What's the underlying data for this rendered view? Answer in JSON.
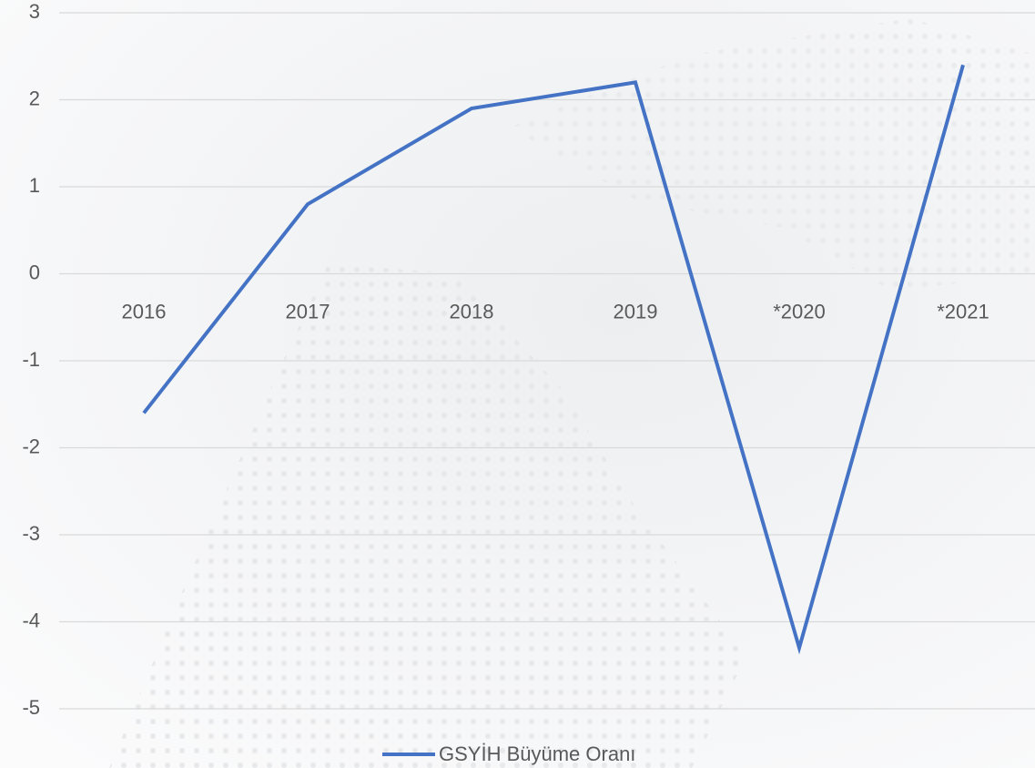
{
  "chart_data": {
    "type": "line",
    "categories": [
      "2016",
      "2017",
      "2018",
      "2019",
      "*2020",
      "*2021"
    ],
    "series": [
      {
        "name": "GSYİH Büyüme Oranı",
        "color": "#4472c4",
        "values": [
          -1.6,
          0.8,
          1.9,
          2.2,
          -4.3,
          2.4
        ]
      }
    ],
    "ylim": [
      -5,
      3
    ],
    "yticks": [
      -5,
      -4,
      -3,
      -2,
      -1,
      0,
      1,
      2,
      3
    ],
    "grid": true,
    "legend": "bottom"
  }
}
